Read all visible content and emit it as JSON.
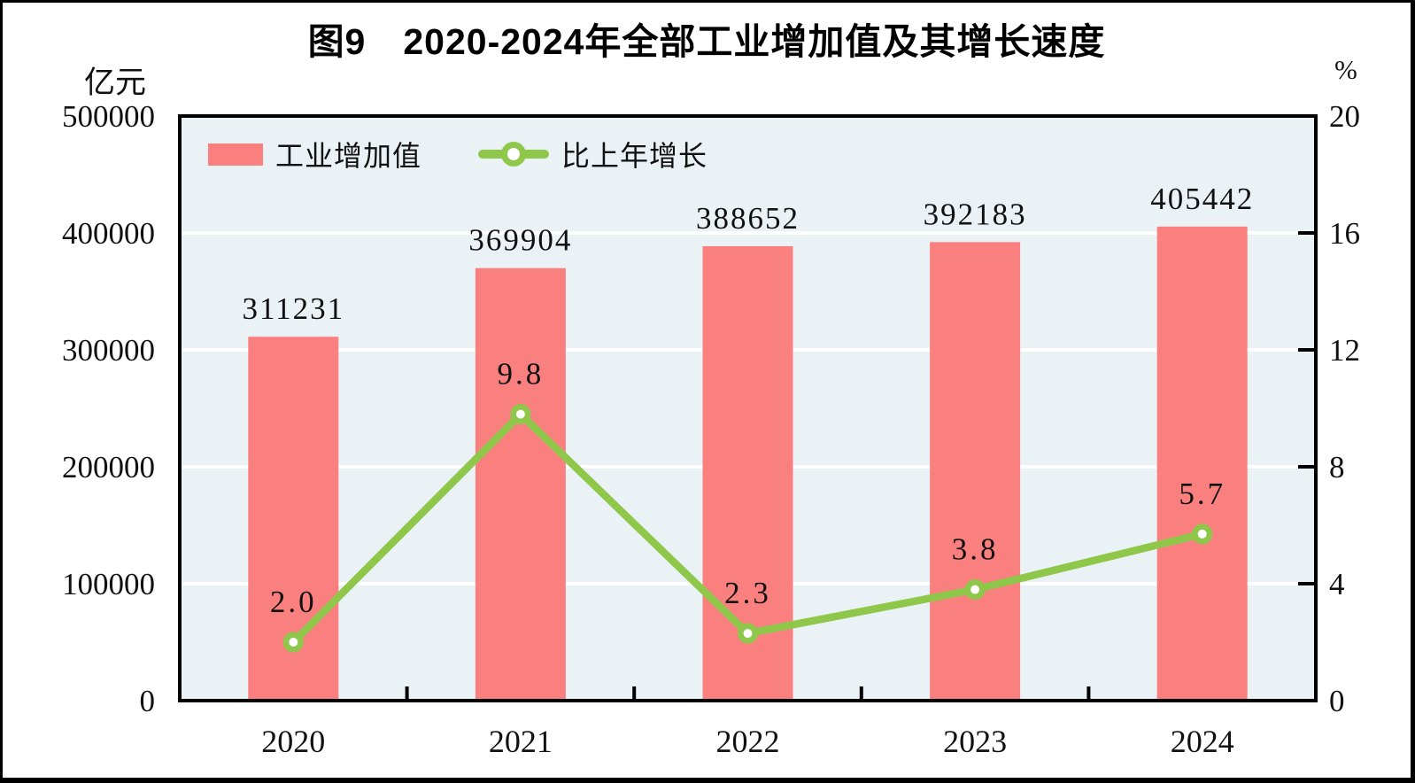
{
  "title": "图9　2020-2024年全部工业增加值及其增长速度",
  "units": {
    "left": "亿元",
    "right": "%"
  },
  "legend": [
    {
      "label": "工业增加值",
      "type": "bar"
    },
    {
      "label": "比上年增长",
      "type": "line"
    }
  ],
  "colors": {
    "bar": "#FA8080",
    "line": "#8FC74A",
    "marker_fill": "#FFFFFF",
    "plot_background": "#EAF2F5",
    "gridline": "#FFFFFF",
    "axis": "#000000",
    "text": "#111111"
  },
  "chart_data": {
    "type": "bar",
    "subtype": "bar+line dual-axis combo",
    "title": "图9　2020-2024年全部工业增加值及其增长速度",
    "categories": [
      "2020",
      "2021",
      "2022",
      "2023",
      "2024"
    ],
    "series": [
      {
        "name": "工业增加值",
        "type": "bar",
        "axis": "left",
        "unit": "亿元",
        "values": [
          311231,
          369904,
          388652,
          392183,
          405442
        ],
        "labels": [
          "311231",
          "369904",
          "388652",
          "392183",
          "405442"
        ]
      },
      {
        "name": "比上年增长",
        "type": "line",
        "axis": "right",
        "unit": "%",
        "marker": "circle-white-fill-green-ring",
        "values": [
          2.0,
          9.8,
          2.3,
          3.8,
          5.7
        ],
        "labels": [
          "2.0",
          "9.8",
          "2.3",
          "3.8",
          "5.7"
        ]
      }
    ],
    "left_axis": {
      "unit": "亿元",
      "min": 0,
      "max": 500000,
      "tick_step": 100000,
      "tick_labels": [
        "0",
        "100000",
        "200000",
        "300000",
        "400000",
        "500000"
      ]
    },
    "right_axis": {
      "unit": "%",
      "min": 0,
      "max": 20,
      "tick_step": 4,
      "tick_labels": [
        "0",
        "4",
        "8",
        "12",
        "16",
        "20"
      ]
    },
    "grid": "horizontal white gridlines on light-blue plot area",
    "legend_position": "top-left inside plot area"
  }
}
